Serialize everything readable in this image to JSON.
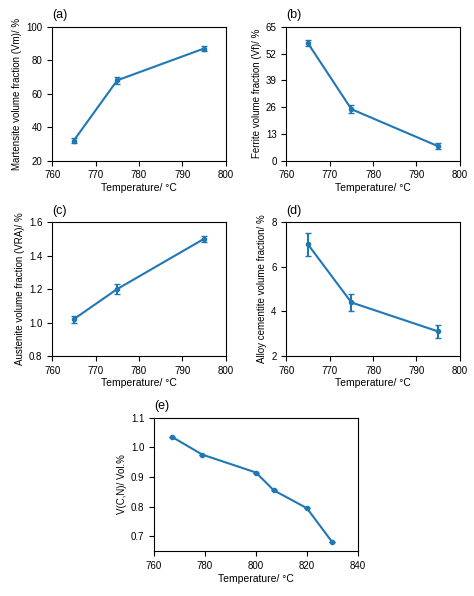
{
  "chart_data": [
    {
      "type": "line",
      "title": "(a)",
      "marker": "o",
      "line_style": "solid",
      "x": [
        765,
        775,
        795
      ],
      "values": [
        32,
        68,
        87
      ],
      "yerr": [
        1.5,
        2.0,
        1.5
      ],
      "x_label": "Temperature/ °C",
      "y_label": "Martensite volume fraction (Vm)/ %",
      "xlim": [
        760,
        800
      ],
      "ylim": [
        20,
        100
      ],
      "xticks": [
        760,
        770,
        780,
        790,
        800
      ],
      "yticks": [
        20,
        40,
        60,
        80,
        100
      ]
    },
    {
      "type": "line",
      "title": "(b)",
      "marker": "o",
      "line_style": "solid",
      "x": [
        765,
        775,
        795
      ],
      "values": [
        57,
        25,
        7
      ],
      "yerr": [
        1.5,
        2.0,
        1.5
      ],
      "x_label": "Temperature/ °C",
      "y_label": "Ferrite volume fraction (Vf)/ %",
      "xlim": [
        760,
        800
      ],
      "ylim": [
        0,
        65
      ],
      "xticks": [
        760,
        770,
        780,
        790,
        800
      ],
      "yticks": [
        0,
        13,
        26,
        39,
        52,
        65
      ]
    },
    {
      "type": "line",
      "title": "(c)",
      "marker": "o",
      "line_style": "solid",
      "x": [
        765,
        775,
        795
      ],
      "values": [
        1.02,
        1.2,
        1.5
      ],
      "yerr": [
        0.02,
        0.03,
        0.02
      ],
      "x_label": "Temperature/ °C",
      "y_label": "Austenite volume fraction (VRA)/ %",
      "xlim": [
        760,
        800
      ],
      "ylim": [
        0.8,
        1.6
      ],
      "xticks": [
        760,
        770,
        780,
        790,
        800
      ],
      "yticks": [
        0.8,
        1.0,
        1.2,
        1.4,
        1.6
      ]
    },
    {
      "type": "line",
      "title": "(d)",
      "marker": "o",
      "line_style": "solid",
      "x": [
        765,
        775,
        795
      ],
      "values": [
        7.0,
        4.4,
        3.1
      ],
      "yerr": [
        0.5,
        0.4,
        0.3
      ],
      "x_label": "Temperature/ °C",
      "y_label": "Alloy cementite volume fraction/ %",
      "xlim": [
        760,
        800
      ],
      "ylim": [
        2,
        8
      ],
      "xticks": [
        760,
        770,
        780,
        790,
        800
      ],
      "yticks": [
        2,
        4,
        6,
        8
      ]
    },
    {
      "type": "line",
      "title": "(e)",
      "marker": "o",
      "line_style": "solid",
      "x": [
        767,
        779,
        800,
        807,
        820,
        830
      ],
      "values": [
        1.035,
        0.975,
        0.915,
        0.855,
        0.795,
        0.68
      ],
      "yerr": [
        0.0,
        0.0,
        0.0,
        0.0,
        0.0,
        0.0
      ],
      "x_label": "Temperature/ °C",
      "y_label": "V(C,N)/ Vol.%",
      "xlim": [
        760,
        840
      ],
      "ylim": [
        0.65,
        1.1
      ],
      "xticks": [
        760,
        780,
        800,
        820,
        840
      ],
      "yticks": [
        0.7,
        0.8,
        0.9,
        1.0,
        1.1
      ]
    }
  ]
}
